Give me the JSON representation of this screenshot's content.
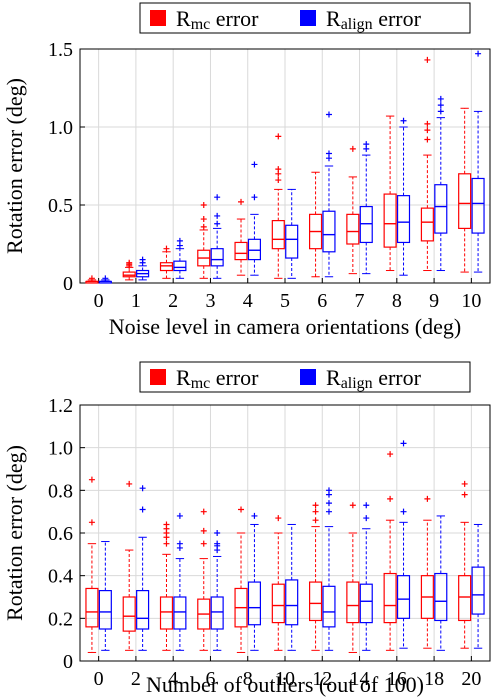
{
  "chart_data": [
    {
      "type": "box",
      "title": "",
      "xlabel": "Noise level in camera orientations (deg)",
      "ylabel": "Rotation error (deg)",
      "ylim": [
        0,
        1.5
      ],
      "yticks": [
        "0",
        "0.5",
        "1.0",
        "1.5"
      ],
      "categories": [
        "0",
        "1",
        "2",
        "3",
        "4",
        "5",
        "6",
        "7",
        "8",
        "9",
        "10"
      ],
      "grid": true,
      "legend_position": "top-center",
      "series": [
        {
          "name_main": "R",
          "name_sub": "mc",
          "name_suffix": " error",
          "color": "#ff0000",
          "boxes": [
            {
              "whislo": 0.0,
              "q1": 0.0,
              "med": 0.01,
              "q3": 0.01,
              "whishi": 0.02,
              "fliers": [
                0.03
              ]
            },
            {
              "whislo": 0.02,
              "q1": 0.04,
              "med": 0.05,
              "q3": 0.07,
              "whishi": 0.1,
              "fliers": [
                0.11,
                0.12,
                0.13
              ]
            },
            {
              "whislo": 0.03,
              "q1": 0.08,
              "med": 0.11,
              "q3": 0.13,
              "whishi": 0.2,
              "fliers": [
                0.22
              ]
            },
            {
              "whislo": 0.03,
              "q1": 0.11,
              "med": 0.16,
              "q3": 0.21,
              "whishi": 0.34,
              "fliers": [
                0.36,
                0.41,
                0.5
              ]
            },
            {
              "whislo": 0.05,
              "q1": 0.15,
              "med": 0.19,
              "q3": 0.26,
              "whishi": 0.41,
              "fliers": [
                0.52
              ]
            },
            {
              "whislo": 0.03,
              "q1": 0.22,
              "med": 0.28,
              "q3": 0.4,
              "whishi": 0.6,
              "fliers": [
                0.66,
                0.7,
                0.73,
                0.94
              ]
            },
            {
              "whislo": 0.04,
              "q1": 0.22,
              "med": 0.33,
              "q3": 0.44,
              "whishi": 0.71,
              "fliers": []
            },
            {
              "whislo": 0.06,
              "q1": 0.25,
              "med": 0.33,
              "q3": 0.44,
              "whishi": 0.68,
              "fliers": [
                0.86
              ]
            },
            {
              "whislo": 0.08,
              "q1": 0.23,
              "med": 0.38,
              "q3": 0.57,
              "whishi": 1.07,
              "fliers": []
            },
            {
              "whislo": 0.08,
              "q1": 0.27,
              "med": 0.39,
              "q3": 0.48,
              "whishi": 0.82,
              "fliers": [
                0.92,
                0.98,
                1.02,
                1.43
              ]
            },
            {
              "whislo": 0.07,
              "q1": 0.35,
              "med": 0.51,
              "q3": 0.7,
              "whishi": 1.12,
              "fliers": []
            }
          ]
        },
        {
          "name_main": "R",
          "name_sub": "align",
          "name_suffix": " error",
          "color": "#0000ff",
          "boxes": [
            {
              "whislo": 0.0,
              "q1": 0.0,
              "med": 0.01,
              "q3": 0.01,
              "whishi": 0.02,
              "fliers": [
                0.03
              ]
            },
            {
              "whislo": 0.02,
              "q1": 0.04,
              "med": 0.06,
              "q3": 0.08,
              "whishi": 0.11,
              "fliers": [
                0.13,
                0.15
              ]
            },
            {
              "whislo": 0.03,
              "q1": 0.08,
              "med": 0.1,
              "q3": 0.14,
              "whishi": 0.22,
              "fliers": [
                0.24,
                0.27
              ]
            },
            {
              "whislo": 0.03,
              "q1": 0.11,
              "med": 0.15,
              "q3": 0.22,
              "whishi": 0.35,
              "fliers": [
                0.38,
                0.43,
                0.55
              ]
            },
            {
              "whislo": 0.05,
              "q1": 0.15,
              "med": 0.21,
              "q3": 0.28,
              "whishi": 0.44,
              "fliers": [
                0.55,
                0.76
              ]
            },
            {
              "whislo": 0.03,
              "q1": 0.16,
              "med": 0.28,
              "q3": 0.37,
              "whishi": 0.6,
              "fliers": []
            },
            {
              "whislo": 0.04,
              "q1": 0.2,
              "med": 0.31,
              "q3": 0.46,
              "whishi": 0.75,
              "fliers": [
                0.8,
                0.83,
                1.08
              ]
            },
            {
              "whislo": 0.06,
              "q1": 0.26,
              "med": 0.38,
              "q3": 0.49,
              "whishi": 0.82,
              "fliers": [
                0.86,
                0.89
              ]
            },
            {
              "whislo": 0.05,
              "q1": 0.26,
              "med": 0.39,
              "q3": 0.56,
              "whishi": 1.0,
              "fliers": [
                1.04
              ]
            },
            {
              "whislo": 0.08,
              "q1": 0.32,
              "med": 0.49,
              "q3": 0.63,
              "whishi": 1.06,
              "fliers": [
                1.1,
                1.14,
                1.18
              ]
            },
            {
              "whislo": 0.07,
              "q1": 0.32,
              "med": 0.51,
              "q3": 0.67,
              "whishi": 1.1,
              "fliers": [
                1.47
              ]
            }
          ]
        }
      ]
    },
    {
      "type": "box",
      "title": "",
      "xlabel": "Number of outliers (out of 100)",
      "ylabel": "Rotation error (deg)",
      "ylim": [
        0,
        1.2
      ],
      "yticks": [
        "0",
        "0.2",
        "0.4",
        "0.6",
        "0.8",
        "1.0",
        "1.2"
      ],
      "categories": [
        "0",
        "2",
        "4",
        "6",
        "8",
        "10",
        "12",
        "14",
        "16",
        "18",
        "20"
      ],
      "grid": true,
      "legend_position": "top-center",
      "series": [
        {
          "name_main": "R",
          "name_sub": "mc",
          "name_suffix": " error",
          "color": "#ff0000",
          "boxes": [
            {
              "whislo": 0.04,
              "q1": 0.16,
              "med": 0.23,
              "q3": 0.34,
              "whishi": 0.55,
              "fliers": [
                0.65,
                0.85
              ]
            },
            {
              "whislo": 0.05,
              "q1": 0.14,
              "med": 0.21,
              "q3": 0.3,
              "whishi": 0.52,
              "fliers": [
                0.83
              ]
            },
            {
              "whislo": 0.05,
              "q1": 0.15,
              "med": 0.23,
              "q3": 0.3,
              "whishi": 0.5,
              "fliers": [
                0.55,
                0.58,
                0.6,
                0.62,
                0.64
              ]
            },
            {
              "whislo": 0.05,
              "q1": 0.15,
              "med": 0.22,
              "q3": 0.29,
              "whishi": 0.48,
              "fliers": [
                0.55,
                0.61,
                0.7
              ]
            },
            {
              "whislo": 0.04,
              "q1": 0.16,
              "med": 0.25,
              "q3": 0.34,
              "whishi": 0.6,
              "fliers": [
                0.71
              ]
            },
            {
              "whislo": 0.05,
              "q1": 0.18,
              "med": 0.26,
              "q3": 0.36,
              "whishi": 0.6,
              "fliers": [
                0.67
              ]
            },
            {
              "whislo": 0.05,
              "q1": 0.19,
              "med": 0.27,
              "q3": 0.37,
              "whishi": 0.63,
              "fliers": [
                0.66,
                0.7,
                0.73
              ]
            },
            {
              "whislo": 0.04,
              "q1": 0.18,
              "med": 0.26,
              "q3": 0.37,
              "whishi": 0.6,
              "fliers": [
                0.73
              ]
            },
            {
              "whislo": 0.05,
              "q1": 0.18,
              "med": 0.26,
              "q3": 0.41,
              "whishi": 0.66,
              "fliers": [
                0.76,
                0.97
              ]
            },
            {
              "whislo": 0.06,
              "q1": 0.2,
              "med": 0.3,
              "q3": 0.4,
              "whishi": 0.66,
              "fliers": [
                0.76
              ]
            },
            {
              "whislo": 0.06,
              "q1": 0.19,
              "med": 0.3,
              "q3": 0.4,
              "whishi": 0.65,
              "fliers": [
                0.78,
                0.83
              ]
            }
          ]
        },
        {
          "name_main": "R",
          "name_sub": "align",
          "name_suffix": " error",
          "color": "#0000ff",
          "boxes": [
            {
              "whislo": 0.05,
              "q1": 0.15,
              "med": 0.23,
              "q3": 0.33,
              "whishi": 0.56,
              "fliers": []
            },
            {
              "whislo": 0.05,
              "q1": 0.15,
              "med": 0.2,
              "q3": 0.33,
              "whishi": 0.58,
              "fliers": [
                0.71,
                0.81
              ]
            },
            {
              "whislo": 0.05,
              "q1": 0.15,
              "med": 0.23,
              "q3": 0.3,
              "whishi": 0.48,
              "fliers": [
                0.53,
                0.55,
                0.68
              ]
            },
            {
              "whislo": 0.05,
              "q1": 0.15,
              "med": 0.23,
              "q3": 0.3,
              "whishi": 0.49,
              "fliers": [
                0.52,
                0.54,
                0.55,
                0.6
              ]
            },
            {
              "whislo": 0.05,
              "q1": 0.17,
              "med": 0.25,
              "q3": 0.37,
              "whishi": 0.64,
              "fliers": [
                0.68
              ]
            },
            {
              "whislo": 0.05,
              "q1": 0.17,
              "med": 0.26,
              "q3": 0.38,
              "whishi": 0.64,
              "fliers": []
            },
            {
              "whislo": 0.05,
              "q1": 0.16,
              "med": 0.23,
              "q3": 0.35,
              "whishi": 0.63,
              "fliers": [
                0.7,
                0.74,
                0.78,
                0.8
              ]
            },
            {
              "whislo": 0.05,
              "q1": 0.18,
              "med": 0.28,
              "q3": 0.36,
              "whishi": 0.62,
              "fliers": [
                0.67,
                0.73
              ]
            },
            {
              "whislo": 0.06,
              "q1": 0.2,
              "med": 0.29,
              "q3": 0.4,
              "whishi": 0.65,
              "fliers": [
                0.7,
                1.02
              ]
            },
            {
              "whislo": 0.05,
              "q1": 0.19,
              "med": 0.28,
              "q3": 0.41,
              "whishi": 0.68,
              "fliers": []
            },
            {
              "whislo": 0.06,
              "q1": 0.22,
              "med": 0.31,
              "q3": 0.44,
              "whishi": 0.64,
              "fliers": []
            }
          ]
        }
      ]
    }
  ]
}
